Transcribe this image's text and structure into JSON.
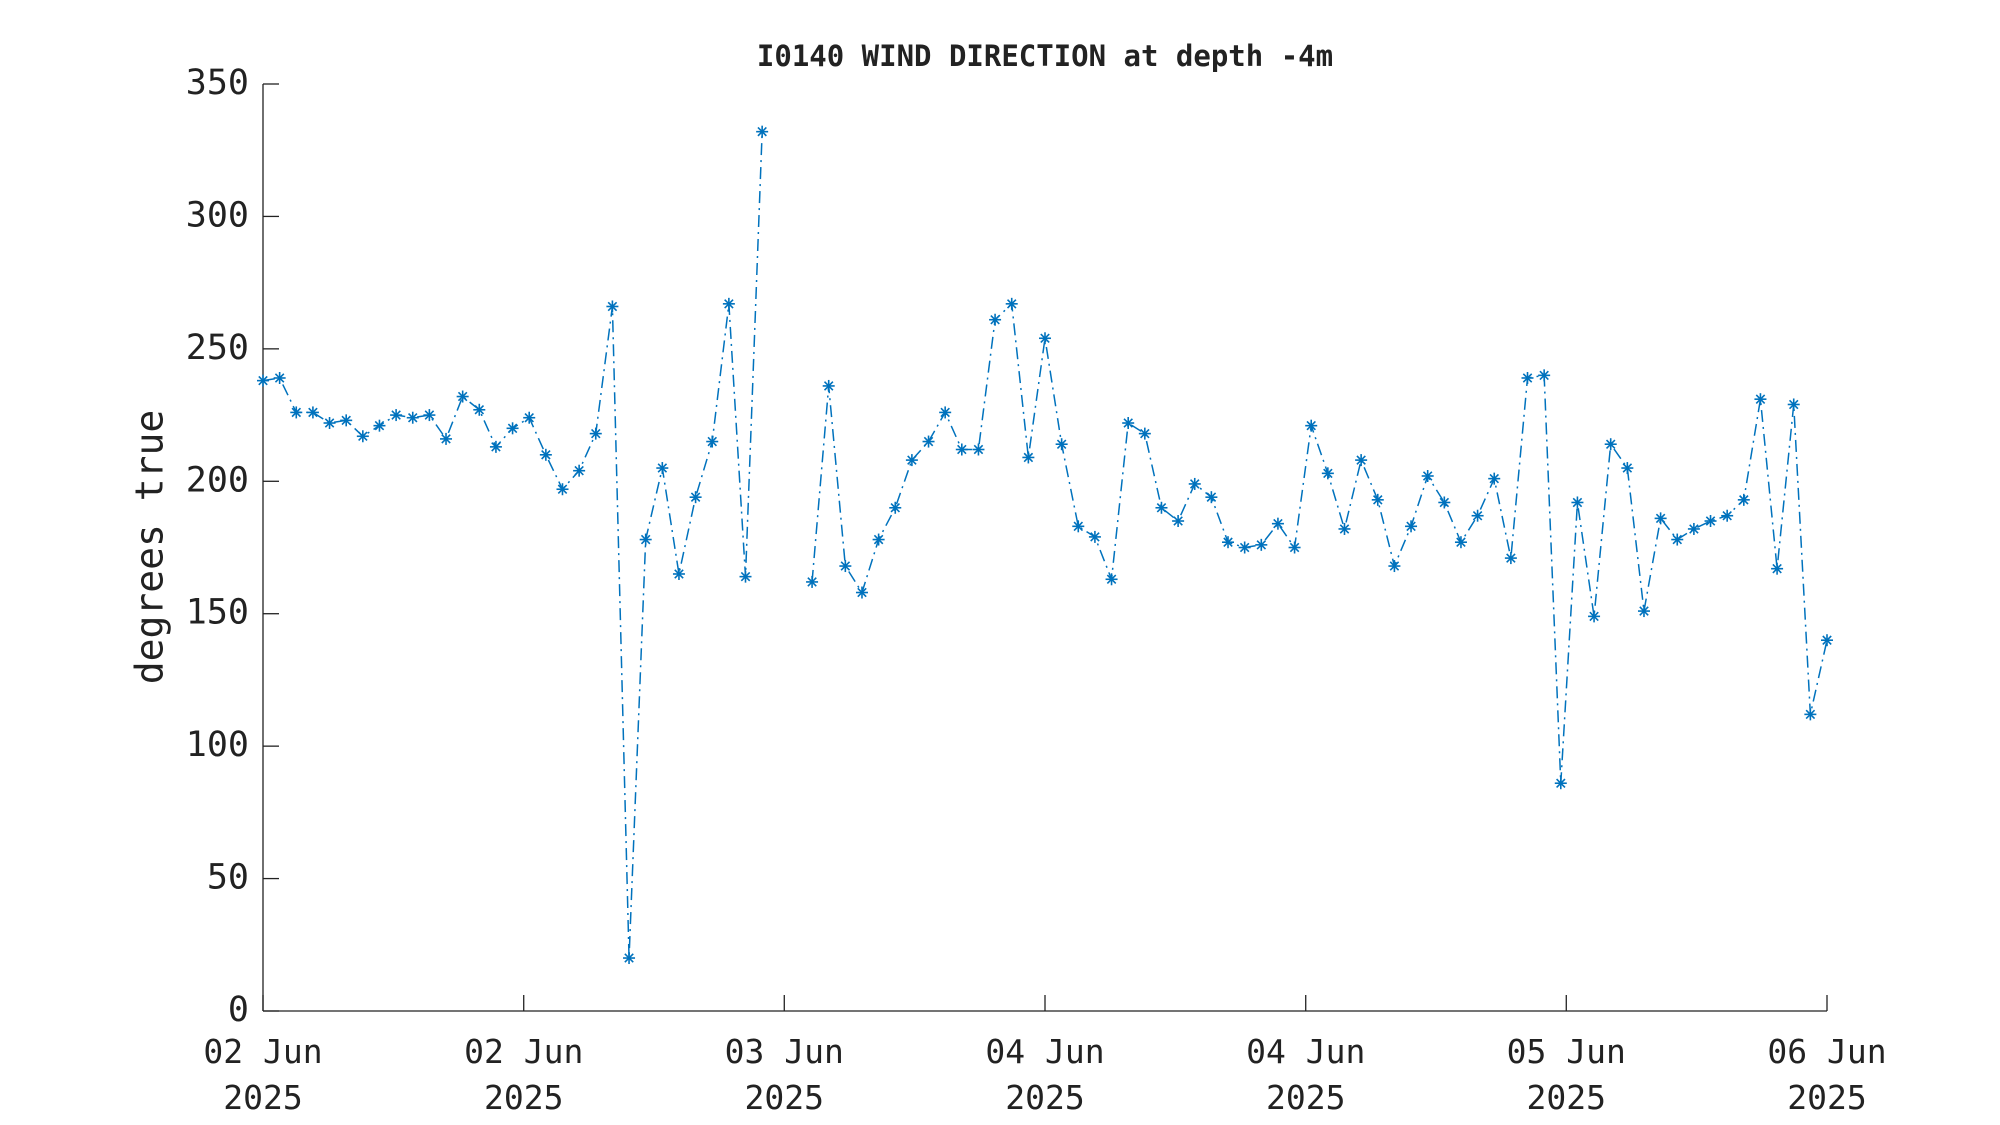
{
  "chart_data": {
    "type": "line",
    "title": "I0140 WIND DIRECTION at depth -4m",
    "ylabel": "degrees true",
    "x": [
      0,
      1,
      2,
      3,
      4,
      5,
      6,
      7,
      8,
      9,
      10,
      11,
      12,
      13,
      14,
      15,
      16,
      17,
      18,
      19,
      20,
      21,
      22,
      23,
      24,
      25,
      26,
      27,
      28,
      29,
      30,
      31,
      32,
      33,
      34,
      35,
      36,
      37,
      38,
      39,
      40,
      41,
      42,
      43,
      44,
      45,
      46,
      47,
      48,
      49,
      50,
      51,
      52,
      53,
      54,
      55,
      56,
      57,
      58,
      59,
      60,
      61,
      62,
      63,
      64,
      65,
      66,
      67,
      68,
      69,
      70,
      71,
      72,
      73,
      74,
      75,
      76,
      77,
      78,
      79,
      80,
      81,
      82,
      83,
      84,
      85,
      86,
      87,
      88,
      89,
      90,
      91,
      92,
      93,
      94
    ],
    "series": [
      {
        "color": "#0072bd",
        "values": [
          238,
          239,
          226,
          226,
          222,
          223,
          217,
          221,
          225,
          224,
          225,
          216,
          232,
          227,
          213,
          220,
          224,
          210,
          197,
          204,
          218,
          266,
          20,
          178,
          205,
          165,
          194,
          215,
          267,
          164,
          332,
          null,
          null,
          162,
          236,
          168,
          158,
          178,
          190,
          208,
          215,
          226,
          212,
          212,
          261,
          267,
          209,
          254,
          214,
          183,
          179,
          163,
          222,
          218,
          190,
          185,
          199,
          194,
          177,
          175,
          176,
          184,
          175,
          221,
          203,
          182,
          208,
          193,
          168,
          183,
          202,
          192,
          177,
          187,
          201,
          171,
          239,
          240,
          86,
          192,
          149,
          214,
          205,
          151,
          186,
          178,
          182,
          185,
          187,
          193,
          231,
          167,
          229,
          112,
          140
        ]
      }
    ],
    "xlim": [
      0,
      94
    ],
    "xticks": [
      {
        "value": 0,
        "label": "02 Jun 2025"
      },
      {
        "value": 15.67,
        "label": "02 Jun 2025"
      },
      {
        "value": 31.33,
        "label": "03 Jun 2025"
      },
      {
        "value": 47,
        "label": "04 Jun 2025"
      },
      {
        "value": 62.67,
        "label": "04 Jun 2025"
      },
      {
        "value": 78.33,
        "label": "05 Jun 2025"
      },
      {
        "value": 94,
        "label": "06 Jun 2025"
      }
    ],
    "ylim": [
      0,
      350
    ],
    "yticks": [
      0,
      50,
      100,
      150,
      200,
      250,
      300,
      350
    ],
    "grid": false
  }
}
